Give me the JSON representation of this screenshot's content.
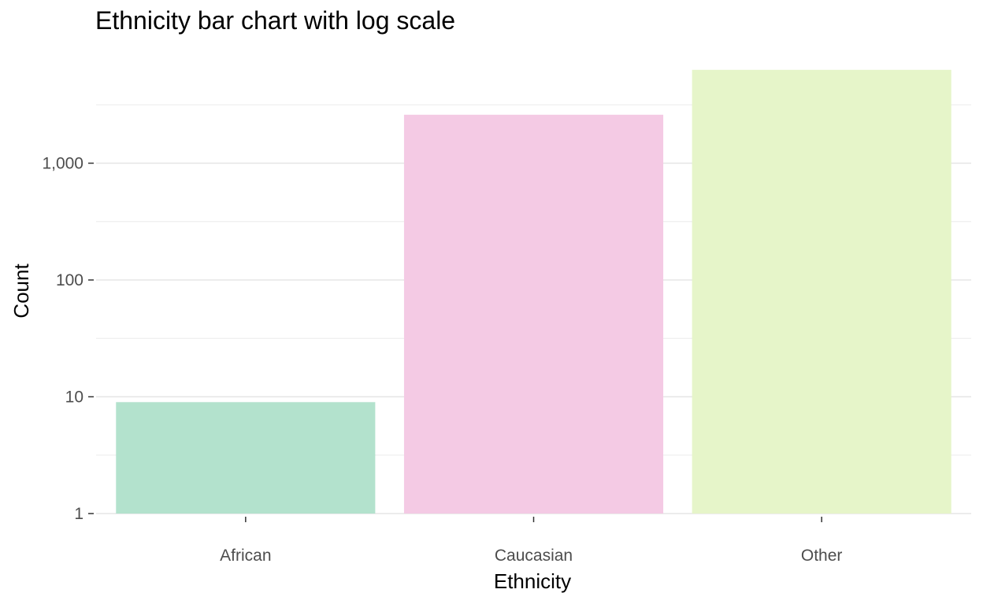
{
  "chart_data": {
    "type": "bar",
    "title": "Ethnicity bar chart with log scale",
    "xlabel": "Ethnicity",
    "ylabel": "Count",
    "y_scale": "log10",
    "ylim": [
      1,
      6000
    ],
    "categories": [
      "African",
      "Caucasian",
      "Other"
    ],
    "values": [
      9,
      2600,
      6300
    ],
    "colors": [
      "#b3e2cd",
      "#f4cae4",
      "#e6f5c9"
    ],
    "y_ticks": [
      1,
      10,
      100,
      1000
    ],
    "y_tick_labels": [
      "1",
      "10",
      "100",
      "1,000"
    ],
    "grid": true,
    "legend": "none"
  }
}
